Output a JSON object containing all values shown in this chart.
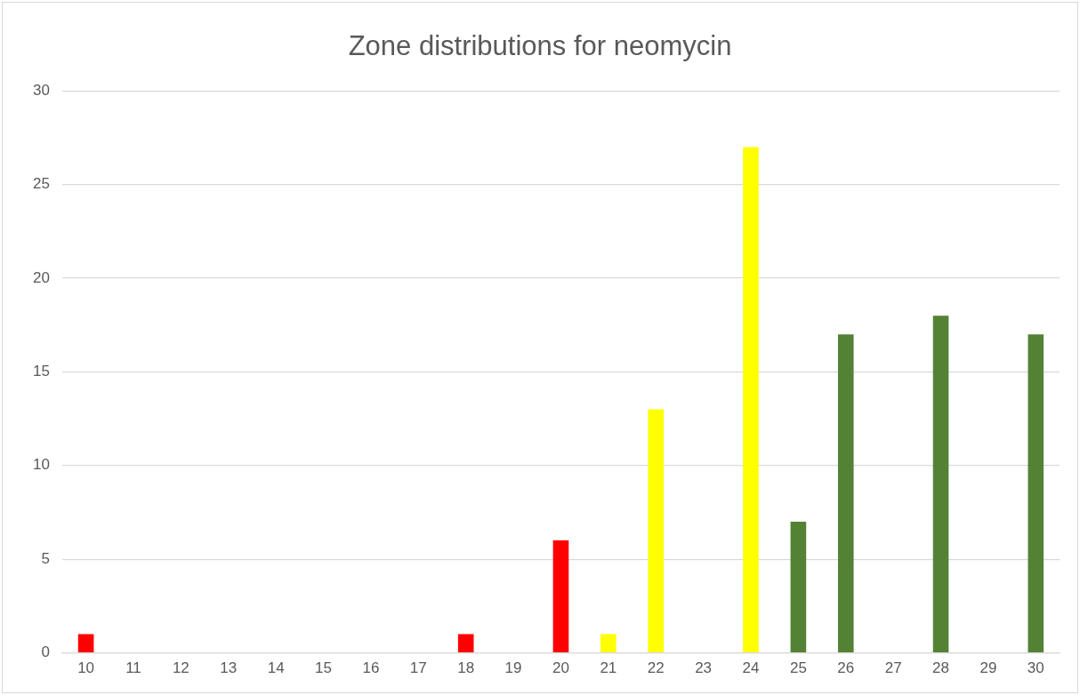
{
  "chart_data": {
    "type": "bar",
    "title": "Zone distributions for neomycin",
    "categories": [
      "10",
      "11",
      "12",
      "13",
      "14",
      "15",
      "16",
      "17",
      "18",
      "19",
      "20",
      "21",
      "22",
      "23",
      "24",
      "25",
      "26",
      "27",
      "28",
      "29",
      "30"
    ],
    "values": [
      1,
      0,
      0,
      0,
      0,
      0,
      0,
      0,
      1,
      0,
      6,
      1,
      13,
      0,
      27,
      7,
      17,
      0,
      18,
      0,
      17
    ],
    "colors": [
      "#ff0000",
      "#ff0000",
      "#ff0000",
      "#ff0000",
      "#ff0000",
      "#ff0000",
      "#ff0000",
      "#ff0000",
      "#ff0000",
      "#ff0000",
      "#ff0000",
      "#ffff00",
      "#ffff00",
      "#ffff00",
      "#ffff00",
      "#548235",
      "#548235",
      "#548235",
      "#548235",
      "#548235",
      "#548235"
    ],
    "ylim": [
      0,
      30
    ],
    "yticks": [
      0,
      5,
      10,
      15,
      20,
      25,
      30
    ],
    "grid": "y",
    "legend": false
  }
}
